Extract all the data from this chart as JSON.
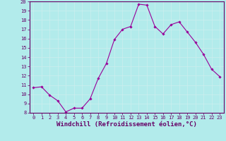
{
  "x": [
    0,
    1,
    2,
    3,
    4,
    5,
    6,
    7,
    8,
    9,
    10,
    11,
    12,
    13,
    14,
    15,
    16,
    17,
    18,
    19,
    20,
    21,
    22,
    23
  ],
  "y": [
    10.7,
    10.8,
    9.9,
    9.3,
    8.1,
    8.5,
    8.5,
    9.5,
    11.7,
    13.3,
    15.9,
    17.0,
    17.3,
    19.7,
    19.6,
    17.3,
    16.5,
    17.5,
    17.8,
    16.7,
    15.6,
    14.3,
    12.7,
    11.9
  ],
  "ylim": [
    8,
    20
  ],
  "yticks": [
    8,
    9,
    10,
    11,
    12,
    13,
    14,
    15,
    16,
    17,
    18,
    19,
    20
  ],
  "xticks": [
    0,
    1,
    2,
    3,
    4,
    5,
    6,
    7,
    8,
    9,
    10,
    11,
    12,
    13,
    14,
    15,
    16,
    17,
    18,
    19,
    20,
    21,
    22,
    23
  ],
  "xlabel": "Windchill (Refroidissement éolien,°C)",
  "line_color": "#990099",
  "marker_color": "#990099",
  "bg_color": "#b2ebeb",
  "grid_color": "#cceeee",
  "tick_fontsize": 5.0,
  "xlabel_fontsize": 6.5
}
